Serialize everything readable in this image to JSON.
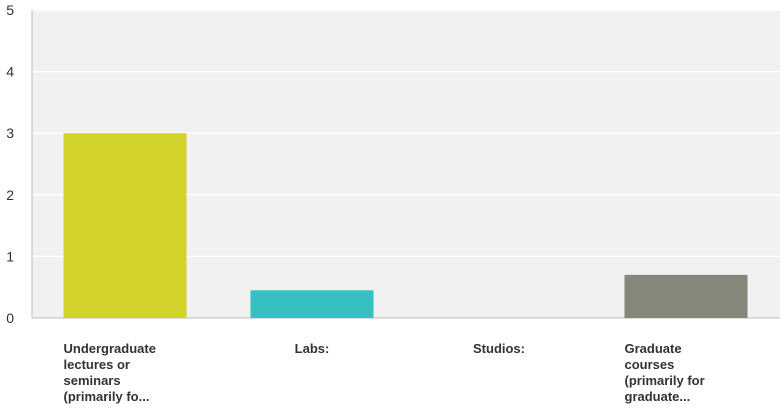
{
  "chart_data": {
    "type": "bar",
    "title": "",
    "xlabel": "",
    "ylabel": "",
    "ylim": [
      0,
      5
    ],
    "yticks": [
      0,
      1,
      2,
      3,
      4,
      5
    ],
    "grid": true,
    "categories": [
      [
        "Undergraduate",
        "lectures or",
        "seminars",
        "(primarily fo..."
      ],
      [
        "Labs:"
      ],
      [
        "Studios:"
      ],
      [
        "Graduate",
        "courses",
        "(primarily for",
        "graduate..."
      ]
    ],
    "values": [
      3,
      0.45,
      0,
      0.7
    ],
    "colors": [
      "#d2d32a",
      "#35c0c2",
      "#cccccc",
      "#85877a"
    ]
  },
  "style": {
    "plot_background": "#f1f1f1",
    "grid_color": "#ffffff",
    "axis_color": "#bdbdbd",
    "tick_label_color": "#333333",
    "category_label_color": "#333333"
  }
}
